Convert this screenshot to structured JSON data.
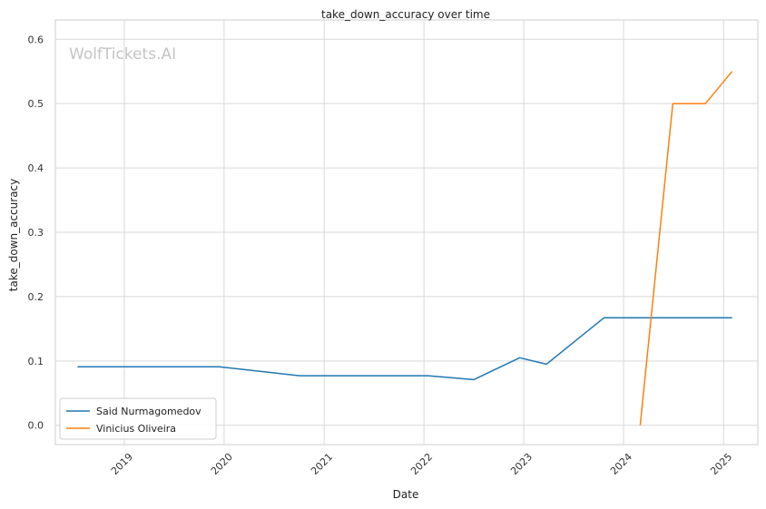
{
  "watermark": "WolfTickets.AI",
  "chart_data": {
    "type": "line",
    "title": "take_down_accuracy over time",
    "xlabel": "Date",
    "ylabel": "take_down_accuracy",
    "x_ticks": [
      "2019",
      "2020",
      "2021",
      "2022",
      "2023",
      "2024",
      "2025"
    ],
    "y_ticks": [
      "0.0",
      "0.1",
      "0.2",
      "0.3",
      "0.4",
      "0.5",
      "0.6"
    ],
    "xlim": [
      "2018-04-24",
      "2025-05-06"
    ],
    "ylim": [
      -0.03,
      0.63
    ],
    "grid": true,
    "legend_position": "lower-left",
    "series": [
      {
        "name": "Said Nurmagomedov",
        "color": "#1f77b4",
        "points": [
          {
            "x": "2018-07-14",
            "y": 0.091
          },
          {
            "x": "2019-12-14",
            "y": 0.091
          },
          {
            "x": "2020-10-03",
            "y": 0.077
          },
          {
            "x": "2022-01-15",
            "y": 0.077
          },
          {
            "x": "2022-07-02",
            "y": 0.071
          },
          {
            "x": "2022-12-17",
            "y": 0.105
          },
          {
            "x": "2023-03-25",
            "y": 0.095
          },
          {
            "x": "2023-10-21",
            "y": 0.167
          },
          {
            "x": "2025-02-01",
            "y": 0.167
          }
        ]
      },
      {
        "name": "Vinicius Oliveira",
        "color": "#ff7f0e",
        "points": [
          {
            "x": "2024-03-02",
            "y": 0.0
          },
          {
            "x": "2024-06-29",
            "y": 0.5
          },
          {
            "x": "2024-10-26",
            "y": 0.5
          },
          {
            "x": "2025-02-01",
            "y": 0.55
          }
        ]
      }
    ]
  }
}
